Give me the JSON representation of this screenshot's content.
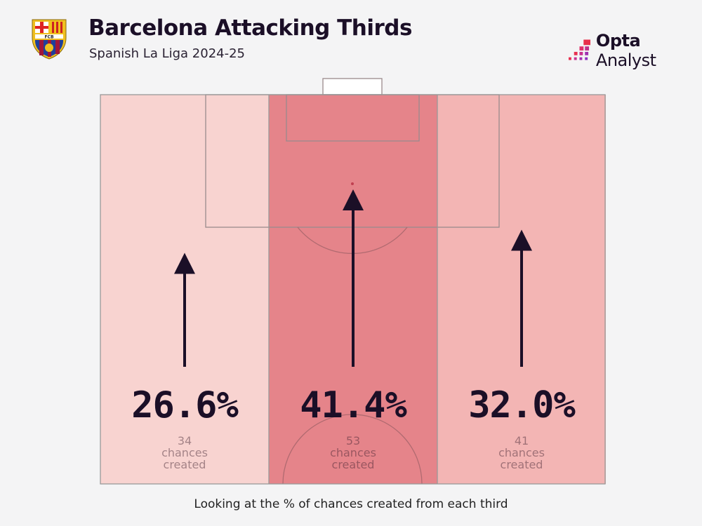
{
  "header": {
    "title": "Barcelona Attacking Thirds",
    "subtitle": "Spanish La Liga 2024-25",
    "crest_text": "FCB"
  },
  "brand": {
    "bold": "Opta",
    "light": " Analyst"
  },
  "chart_data": {
    "type": "bar",
    "title": "Barcelona Attacking Thirds",
    "subtitle": "Spanish La Liga 2024-25",
    "values": [
      26.6,
      41.4,
      32.0
    ],
    "labels": [
      "26.6%",
      "41.4%",
      "32.0%"
    ],
    "counts": [
      34,
      53,
      41
    ],
    "count_label": "chances created",
    "colors": [
      "#f8d3d0",
      "#e5848a",
      "#f3b5b4"
    ]
  },
  "footer": "Looking at the % of chances created from each third"
}
